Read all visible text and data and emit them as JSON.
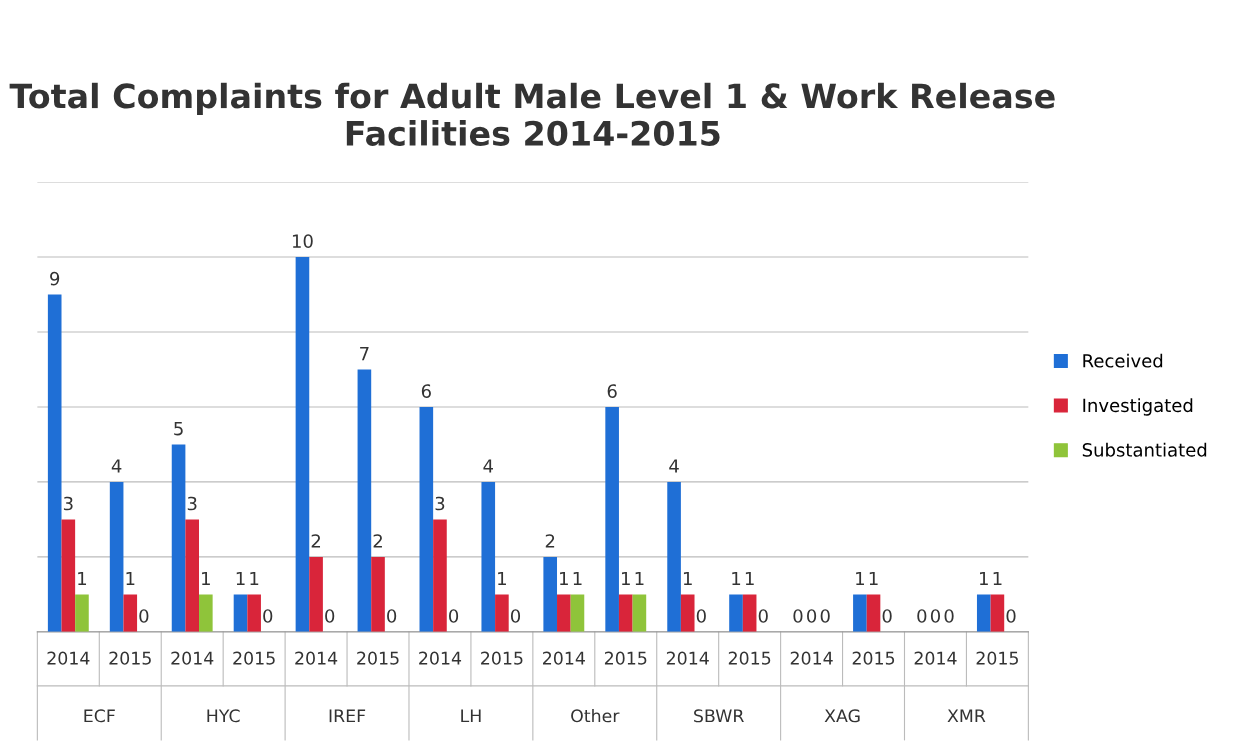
{
  "chart_data": {
    "type": "bar",
    "title": "Total Complaints for Adult Male Level 1 & Work Release Facilities 2014-2015",
    "categories": [
      "2014",
      "2015",
      "2014",
      "2015",
      "2014",
      "2015",
      "2014",
      "2015",
      "2014",
      "2015",
      "2014",
      "2015",
      "2014",
      "2015",
      "2014",
      "2015"
    ],
    "series": [
      {
        "name": "Received",
        "color": "#1f6fd6",
        "values": [
          9,
          4,
          5,
          1,
          10,
          7,
          6,
          4,
          2,
          6,
          4,
          1,
          0,
          1,
          0,
          1
        ]
      },
      {
        "name": "Investigated",
        "color": "#d9253a",
        "values": [
          3,
          1,
          3,
          1,
          2,
          2,
          3,
          1,
          1,
          1,
          1,
          1,
          0,
          1,
          0,
          1
        ]
      },
      {
        "name": "Substantiated",
        "color": "#8fc43a",
        "values": [
          1,
          0,
          1,
          0,
          0,
          0,
          0,
          0,
          1,
          1,
          0,
          0,
          0,
          0,
          0,
          0
        ]
      }
    ],
    "annotations": [
      "ECF",
      "HYC",
      "IREF",
      "LH",
      "Other",
      "SBWR",
      "XAG",
      "XMR"
    ],
    "ylim": [
      0,
      12
    ],
    "yticks": [
      {
        "value": 0,
        "label": null
      },
      {
        "value": 2,
        "label": null
      },
      {
        "value": 4,
        "label": null
      },
      {
        "value": 6,
        "label": null
      },
      {
        "value": 8,
        "label": null
      },
      {
        "value": 10,
        "label": null
      },
      {
        "value": 12,
        "label": null
      }
    ],
    "grid": "y",
    "legend": "right",
    "data_labels": true
  }
}
